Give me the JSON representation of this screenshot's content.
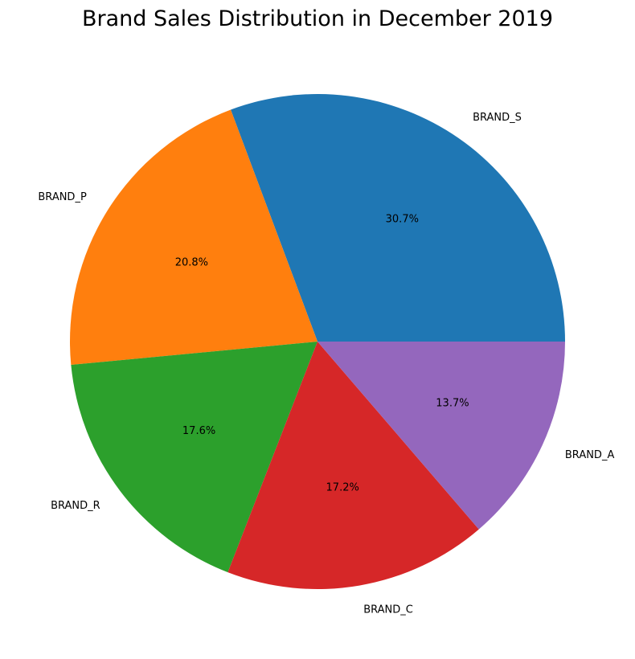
{
  "chart_data": {
    "type": "pie",
    "title": "Brand Sales Distribution in December 2019",
    "categories": [
      "BRAND_S",
      "BRAND_P",
      "BRAND_R",
      "BRAND_C",
      "BRAND_A"
    ],
    "values": [
      30.7,
      20.8,
      17.6,
      17.2,
      13.7
    ],
    "value_labels": [
      "30.7%",
      "20.8%",
      "17.6%",
      "17.2%",
      "13.7%"
    ],
    "colors": [
      "#1f77b4",
      "#ff7f0e",
      "#2ca02c",
      "#d62728",
      "#9467bd"
    ],
    "start_angle": 0,
    "direction": "counterclockwise",
    "legend": "none"
  }
}
